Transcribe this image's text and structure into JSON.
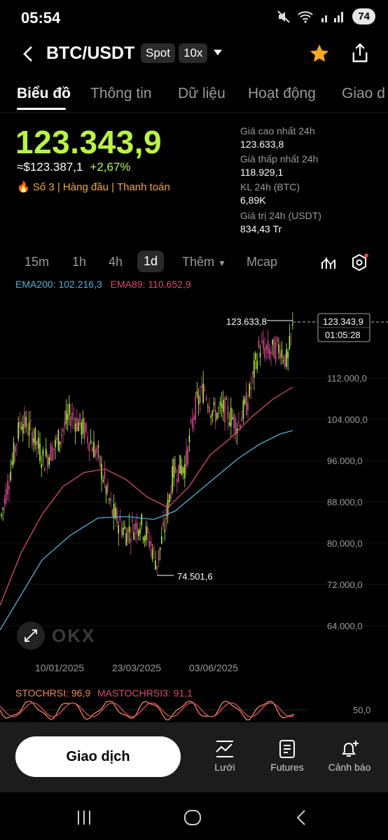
{
  "status": {
    "time": "05:54",
    "battery": "74"
  },
  "header": {
    "pair": "BTC/USDT",
    "market_type": "Spot",
    "leverage": "10x"
  },
  "tabs": [
    "Biểu đồ",
    "Thông tin",
    "Dữ liệu",
    "Hoạt động",
    "Giao d"
  ],
  "ticker": {
    "last_price": "123.343,9",
    "fiat_value": "≈$123.387,1",
    "change_pct": "+2,67%",
    "tags": "🔥 Số 3  |  Hàng đầu  |  Thanh toán"
  },
  "stats": [
    {
      "label": "Giá cao nhất 24h",
      "value": "123.633,8"
    },
    {
      "label": "Giá thấp nhất 24h",
      "value": "118.929,1"
    },
    {
      "label": "KL 24h (BTC)",
      "value": "6,89K"
    },
    {
      "label": "Giá trị 24h (USDT)",
      "value": "834,43 Tr"
    }
  ],
  "timeframes": [
    "15m",
    "1h",
    "4h",
    "1d",
    "Thêm",
    "Mcap"
  ],
  "indicators": {
    "ema200": "EMA200: 102.216,3",
    "ema89": "EMA89: 110.652,9",
    "stoch": "STOCHRSI: 96,9",
    "mastoch": "MASTOCHRSI3: 91,1",
    "stoch_level": "50,0"
  },
  "chart_data": {
    "type": "candlestick",
    "y_ticks": [
      "112.000,0",
      "104.000,0",
      "96.000,0",
      "88.000,0",
      "80.000,0",
      "72.000,0",
      "64.000,0"
    ],
    "x_ticks": [
      "10/01/2025",
      "23/03/2025",
      "03/06/2025"
    ],
    "high_label": "123.633,8",
    "low_label": "74.501,6",
    "current_price_tag": "123.343,9",
    "countdown": "01:05:28",
    "watermark": "OKX"
  },
  "colors": {
    "up": "#b8f542",
    "down": "#d04a8e",
    "ema200": "#4fb3d9",
    "ema89": "#d94a6e",
    "stoch": "#f08a4b"
  },
  "bottom_nav": {
    "trade": "Giao dịch",
    "items": [
      "Lưới",
      "Futures",
      "Cảnh báo"
    ]
  }
}
